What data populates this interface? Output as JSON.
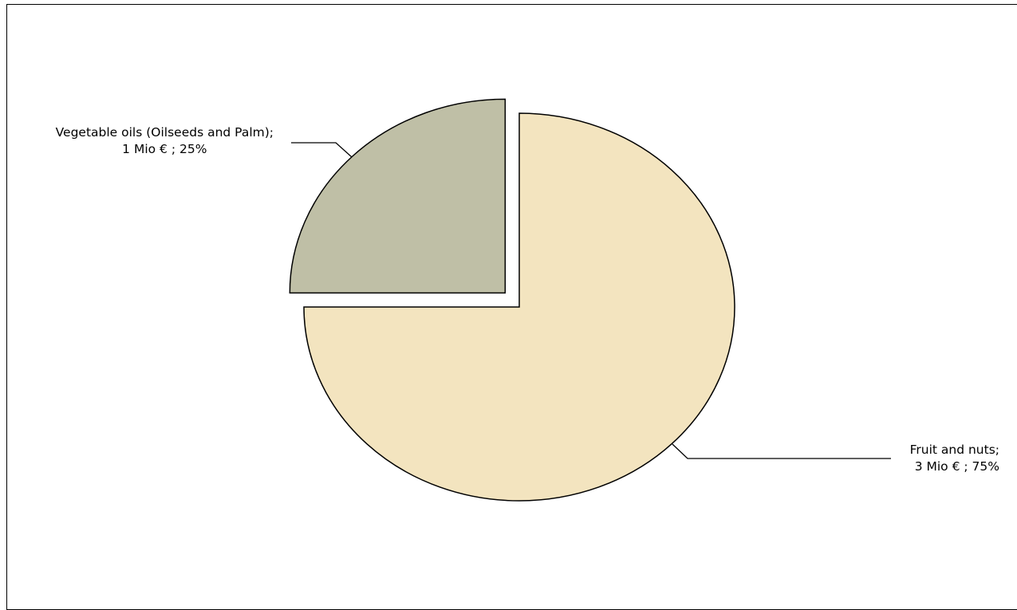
{
  "chart_data": {
    "type": "pie",
    "slices": [
      {
        "name": "Fruit and nuts",
        "value": 3,
        "percent": 75,
        "color": "#F3E4BF",
        "label_line1": "Fruit and nuts;",
        "label_line2": "3 Mio € ; 75%"
      },
      {
        "name": "Vegetable oils (Oilseeds and Palm)",
        "value": 1,
        "percent": 25,
        "color": "#BFBFA6",
        "label_line1": "Vegetable oils (Oilseeds and Palm);",
        "label_line2": "1 Mio € ; 25%"
      }
    ],
    "unit": "Mio €",
    "start_angle": "12 o'clock",
    "direction": "clockwise",
    "exploded_slice": "Vegetable oils (Oilseeds and Palm)",
    "outline_color": "#000000",
    "legend": "none"
  }
}
